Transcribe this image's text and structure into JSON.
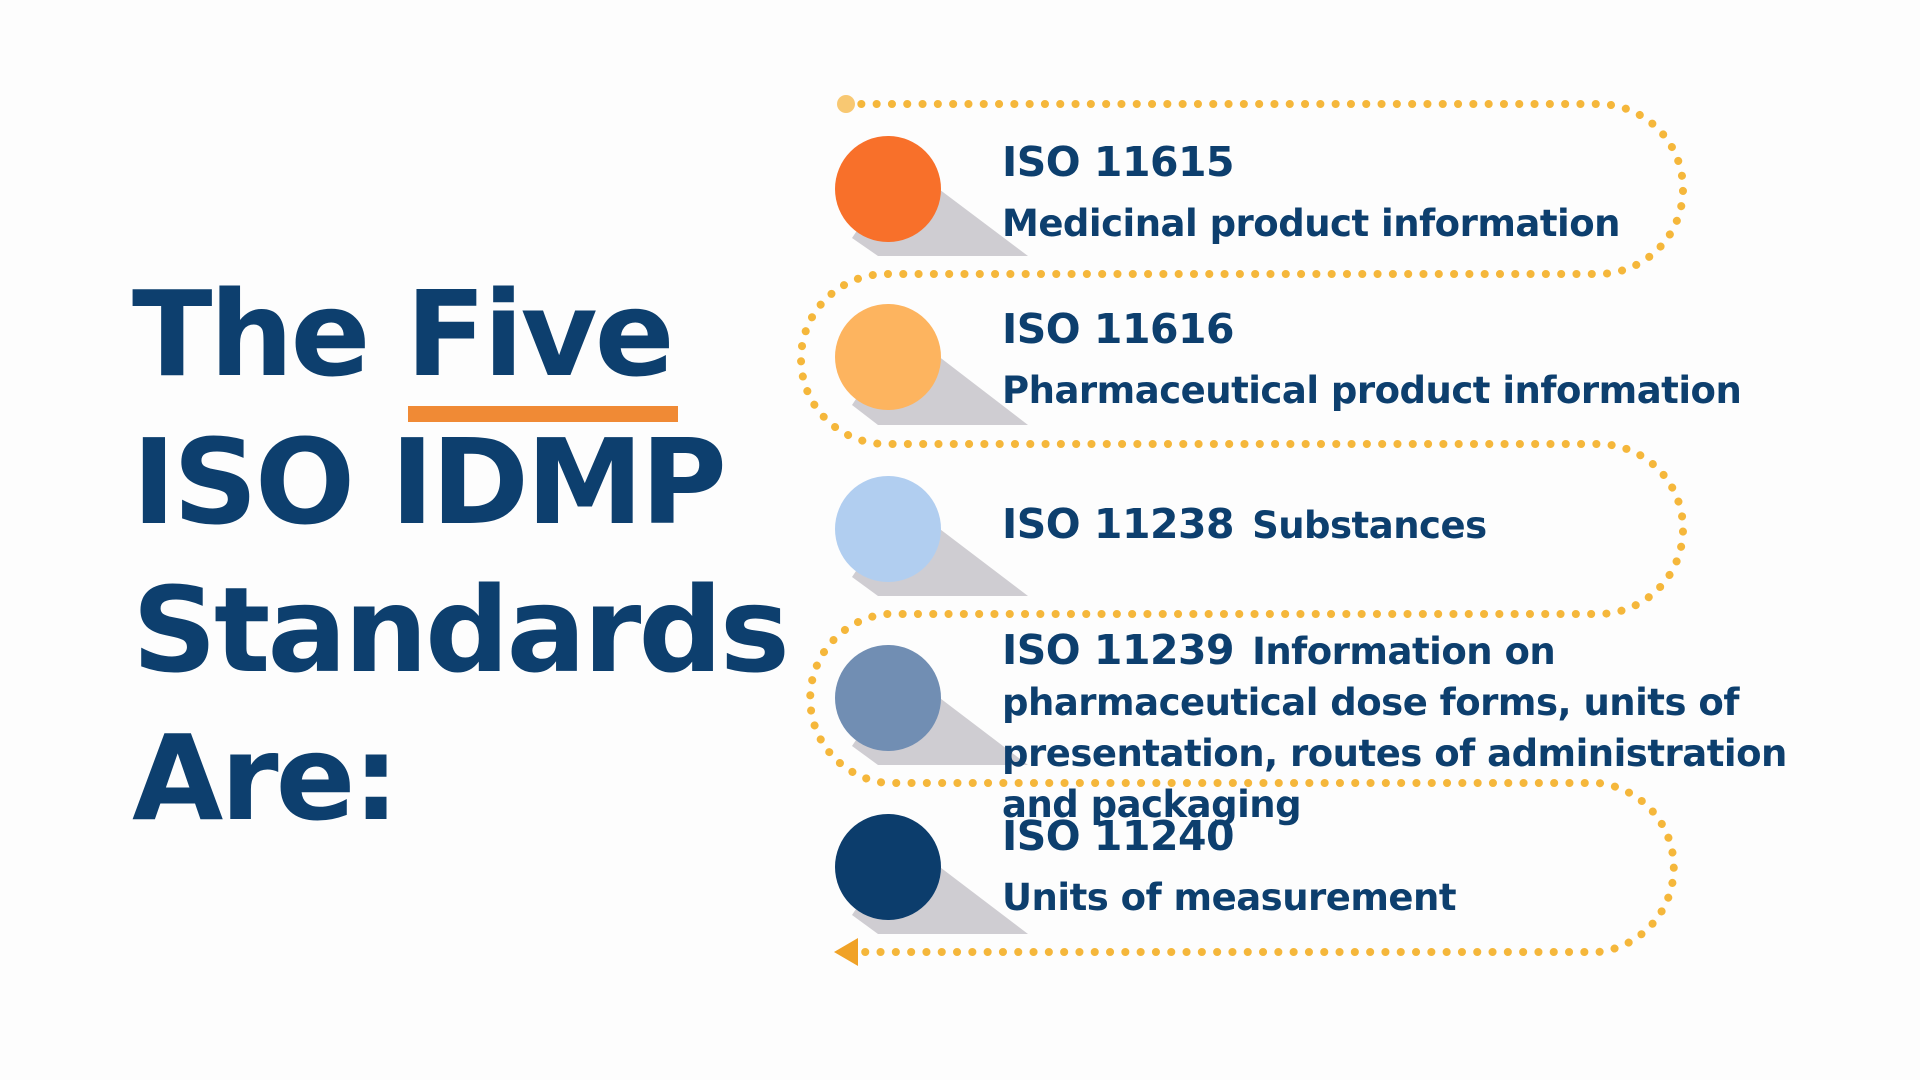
{
  "headline": {
    "line1_pre": "The ",
    "line1_emph": "Five",
    "line2": "ISO IDMP",
    "line3": "Standards",
    "line4": "Are:"
  },
  "colors": {
    "title": "#0d3f6e",
    "underline": "#f08a35",
    "dots": "#f5b73b",
    "shadow": "#cfcdd2"
  },
  "items": [
    {
      "code": "ISO 11615",
      "description": "Medicinal product information",
      "color": "#f8702a"
    },
    {
      "code": "ISO 11616",
      "description": "Pharmaceutical product information",
      "color": "#fdb45f"
    },
    {
      "code": "ISO 11238",
      "description": "Substances",
      "color": "#b1cef0"
    },
    {
      "code": "ISO 11239",
      "description": "Information on pharmaceutical dose forms, units of presentation, routes of administration and packaging",
      "color": "#718eb3"
    },
    {
      "code": "ISO 11240",
      "description": "Units of measurement",
      "color": "#0c3d6c"
    }
  ],
  "path": {
    "start_marker": "start-dot",
    "end_marker": "arrow-left"
  }
}
